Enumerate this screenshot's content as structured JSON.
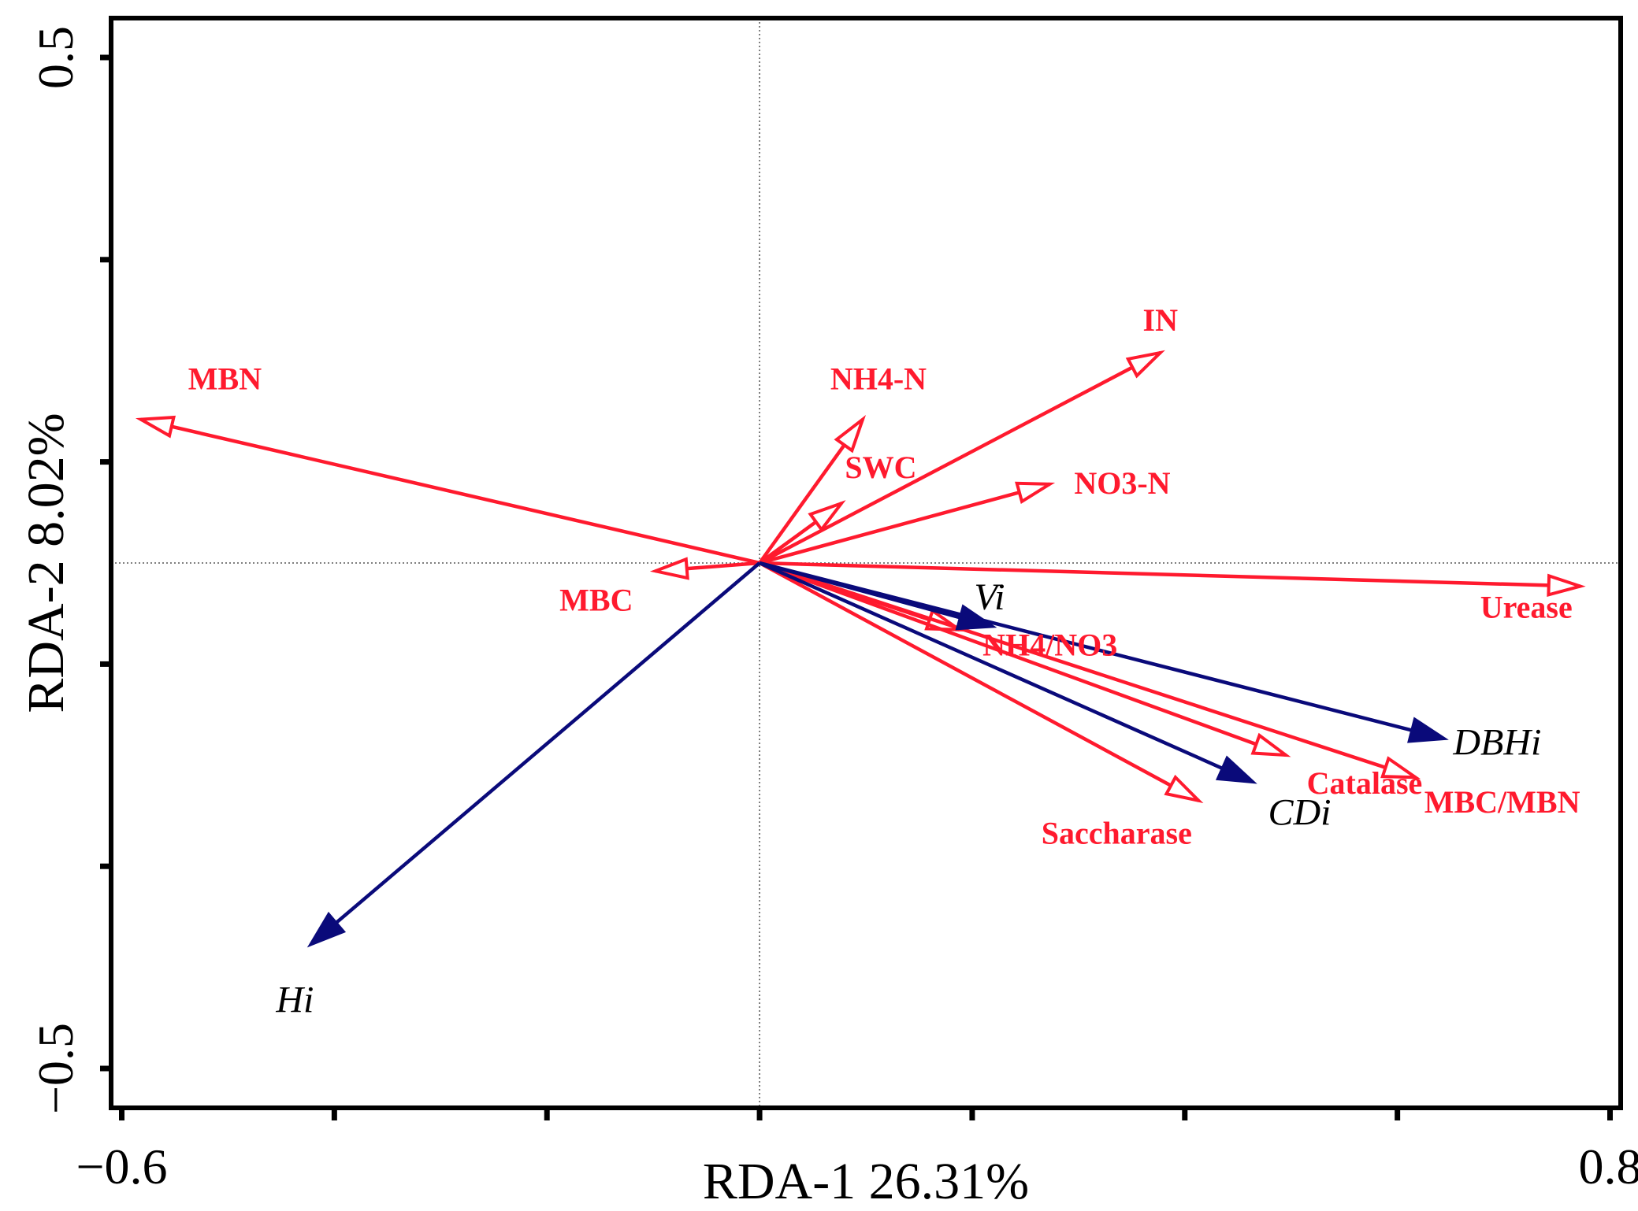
{
  "chart_data": {
    "type": "scatter",
    "subtype": "rda-biplot",
    "xlabel": "RDA-1 26.31%",
    "ylabel": "RDA-2 8.02%",
    "xlim": [
      -0.61,
      0.81
    ],
    "ylim": [
      -0.5,
      0.5
    ],
    "x_ticks": [
      -0.6,
      -0.4,
      -0.2,
      0.0,
      0.2,
      0.4,
      0.6,
      0.8
    ],
    "y_ticks": [
      -0.5,
      -0.3,
      -0.1,
      0.1,
      0.3,
      0.5
    ],
    "x_tick_labels": [
      {
        "value": -0.6,
        "text": "−0.6"
      },
      {
        "value": 0.8,
        "text": "0.8"
      }
    ],
    "y_tick_labels": [
      {
        "value": 0.5,
        "text": "0.5"
      },
      {
        "value": -0.5,
        "text": "−0.5"
      }
    ],
    "colors": {
      "environment": "#ff1a2e",
      "species": "#0a0a7a",
      "axis": "#000000"
    },
    "env_vectors": [
      {
        "name": "MBN",
        "x": -0.582,
        "y": 0.142
      },
      {
        "name": "NH4-N",
        "x": 0.097,
        "y": 0.142
      },
      {
        "name": "IN",
        "x": 0.377,
        "y": 0.208
      },
      {
        "name": "SWC",
        "x": 0.077,
        "y": 0.059
      },
      {
        "name": "NO3-N",
        "x": 0.273,
        "y": 0.078
      },
      {
        "name": "MBC",
        "x": -0.098,
        "y": -0.008
      },
      {
        "name": "Urease",
        "x": 0.772,
        "y": -0.023
      },
      {
        "name": "NH4/NO3",
        "x": 0.188,
        "y": -0.066
      },
      {
        "name": "Catalase",
        "x": 0.495,
        "y": -0.19
      },
      {
        "name": "MBC/MBN",
        "x": 0.617,
        "y": -0.212
      },
      {
        "name": "Saccharase",
        "x": 0.413,
        "y": -0.235
      }
    ],
    "species_vectors": [
      {
        "name": "Hi",
        "x": -0.423,
        "y": -0.378
      },
      {
        "name": "Vi",
        "x": 0.22,
        "y": -0.063
      },
      {
        "name": "DBHi",
        "x": 0.645,
        "y": -0.174
      },
      {
        "name": "CDi",
        "x": 0.465,
        "y": -0.217
      }
    ]
  }
}
